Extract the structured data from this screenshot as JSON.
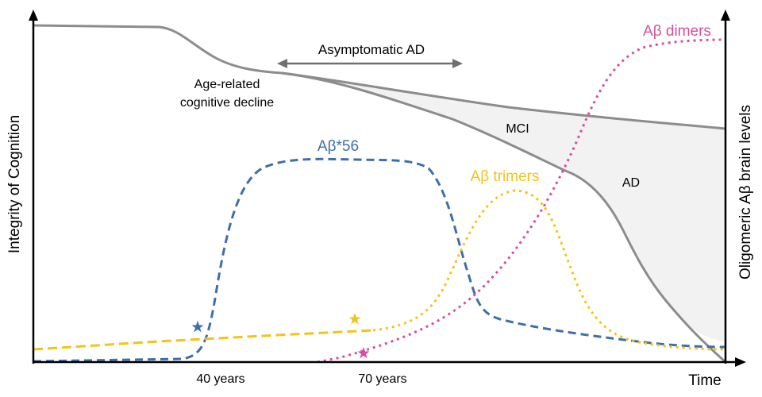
{
  "axes": {
    "y_left_label": "Integrity of Cognition",
    "y_right_label": "Oligomeric Aβ brain levels",
    "x_label": "Time",
    "x_ticks": [
      "40 years",
      "70 years"
    ]
  },
  "annotations": {
    "asymptomatic": "Asymptomatic AD",
    "age_related_line1": "Age-related",
    "age_related_line2": "cognitive decline",
    "mci": "MCI",
    "ad": "AD"
  },
  "series_labels": {
    "ab56": "Aβ*56",
    "trimers": "Aβ trimers",
    "dimers": "Aβ dimers"
  },
  "colors": {
    "cognition": "#8c8c8c",
    "ab56": "#3f6fa8",
    "trimers": "#f2c418",
    "dimers": "#d8509d",
    "shade": "#f2f2f2",
    "axis": "#000000",
    "arrow": "#707070"
  },
  "markers": [
    {
      "name": "ab56-star",
      "symbol": "star"
    },
    {
      "name": "trimer-star",
      "symbol": "star"
    },
    {
      "name": "dimer-star",
      "symbol": "star"
    }
  ]
}
